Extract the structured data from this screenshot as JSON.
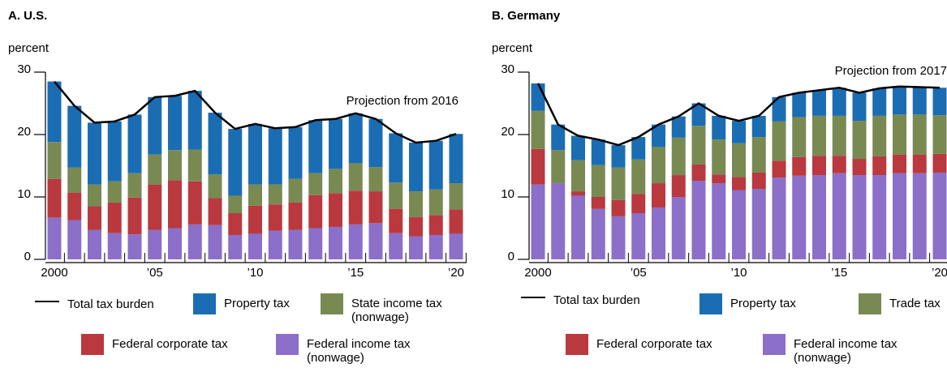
{
  "chart_data": [
    {
      "type": "bar",
      "stacked": true,
      "title": "A. U.S.",
      "y_label": "percent",
      "annotation": "Projection from 2016",
      "categories": [
        "2000",
        null,
        null,
        null,
        null,
        "’05",
        null,
        null,
        null,
        null,
        "’10",
        null,
        null,
        null,
        null,
        "’15",
        null,
        null,
        null,
        null,
        "’20"
      ],
      "ylim": [
        0,
        30
      ],
      "yticks": [
        0,
        10,
        20,
        30
      ],
      "series": [
        {
          "name": "Total tax burden",
          "type": "line",
          "color": "#000000",
          "values": [
            28.5,
            24.6,
            21.9,
            22.1,
            23.2,
            26.0,
            26.2,
            27.0,
            23.5,
            20.9,
            21.7,
            21.0,
            21.2,
            22.3,
            22.5,
            23.4,
            22.5,
            20.2,
            18.7,
            19.0,
            20.1
          ]
        },
        {
          "name": "Property tax",
          "color": "#1b6db3",
          "values": [
            9.7,
            9.9,
            9.9,
            9.6,
            9.4,
            9.2,
            8.7,
            9.4,
            9.9,
            10.7,
            9.7,
            9.0,
            8.3,
            8.5,
            8.0,
            8.0,
            7.7,
            7.9,
            7.8,
            7.8,
            7.9
          ]
        },
        {
          "name": "State income tax (nonwage)",
          "color": "#788a52",
          "values": [
            5.9,
            4.0,
            3.5,
            3.4,
            3.9,
            4.8,
            4.8,
            5.1,
            3.8,
            2.8,
            3.4,
            3.2,
            3.8,
            3.5,
            3.9,
            4.4,
            3.9,
            4.2,
            4.1,
            4.1,
            4.2
          ]
        },
        {
          "name": "Federal corporate tax",
          "color": "#b9393f",
          "values": [
            6.2,
            4.4,
            3.8,
            4.9,
            5.9,
            7.3,
            7.7,
            6.9,
            4.3,
            3.5,
            4.5,
            4.2,
            4.4,
            5.3,
            5.4,
            5.4,
            5.1,
            3.9,
            3.1,
            3.2,
            3.9
          ]
        },
        {
          "name": "Federal income tax (nonwage)",
          "color": "#8b6fc9",
          "values": [
            6.7,
            6.3,
            4.7,
            4.2,
            4.0,
            4.7,
            5.0,
            5.6,
            5.5,
            3.9,
            4.1,
            4.6,
            4.7,
            5.0,
            5.2,
            5.6,
            5.8,
            4.2,
            3.7,
            3.9,
            4.1
          ]
        }
      ]
    },
    {
      "type": "bar",
      "stacked": true,
      "title": "B. Germany",
      "y_label": "percent",
      "annotation": "Projection from 2017",
      "categories": [
        "2000",
        null,
        null,
        null,
        null,
        "’05",
        null,
        null,
        null,
        null,
        "’10",
        null,
        null,
        null,
        null,
        "’15",
        null,
        null,
        null,
        null,
        "’20"
      ],
      "ylim": [
        0,
        30
      ],
      "yticks": [
        0,
        10,
        20,
        30
      ],
      "series": [
        {
          "name": "Total tax burden",
          "type": "line",
          "color": "#000000",
          "values": [
            28.2,
            21.6,
            19.8,
            19.2,
            18.3,
            19.6,
            21.6,
            22.9,
            25.0,
            23.0,
            22.2,
            23.0,
            26.0,
            26.7,
            27.1,
            27.5,
            26.7,
            27.4,
            27.7,
            27.6,
            27.5
          ]
        },
        {
          "name": "Property tax",
          "color": "#1b6db3",
          "values": [
            4.4,
            4.1,
            3.9,
            4.1,
            3.6,
            3.6,
            3.6,
            3.4,
            3.6,
            3.8,
            3.6,
            3.4,
            3.9,
            3.9,
            4.1,
            4.5,
            4.5,
            4.4,
            4.5,
            4.4,
            4.4
          ]
        },
        {
          "name": "Trade tax",
          "color": "#788a52",
          "values": [
            6.1,
            5.3,
            5.0,
            5.1,
            5.2,
            5.5,
            5.8,
            6.0,
            6.2,
            5.6,
            5.4,
            5.7,
            6.3,
            6.4,
            6.4,
            6.4,
            6.1,
            6.5,
            6.4,
            6.4,
            6.2
          ]
        },
        {
          "name": "Federal corporate tax",
          "color": "#b9393f",
          "values": [
            5.7,
            0,
            0.7,
            1.9,
            2.6,
            3.1,
            3.9,
            3.5,
            2.6,
            1.4,
            2.1,
            2.6,
            2.7,
            3.0,
            3.1,
            2.8,
            2.6,
            3.0,
            3.0,
            3.0,
            3.0
          ]
        },
        {
          "name": "Federal income tax (nonwage)",
          "color": "#8b6fc9",
          "values": [
            12.0,
            12.2,
            10.2,
            8.1,
            6.9,
            7.4,
            8.3,
            10.0,
            12.6,
            12.2,
            11.1,
            11.3,
            13.1,
            13.4,
            13.5,
            13.8,
            13.5,
            13.5,
            13.8,
            13.8,
            13.9
          ]
        }
      ]
    }
  ]
}
